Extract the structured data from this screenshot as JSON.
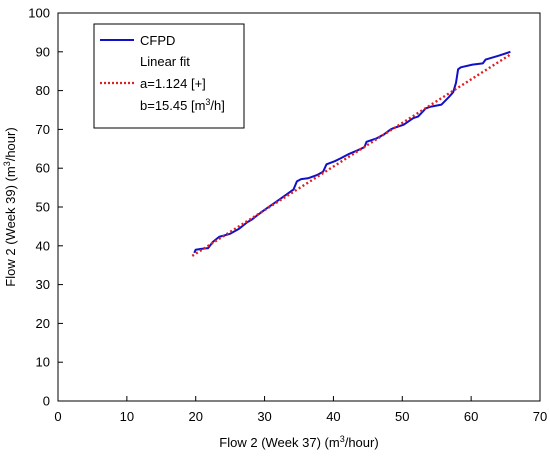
{
  "chart_data": {
    "type": "line",
    "xlabel": {
      "main": "Flow 2 (Week 37) (m",
      "sup": "3",
      "tail": "/hour)"
    },
    "ylabel": {
      "main": "Flow 2 (Week 39) (m",
      "sup": "3",
      "tail": "/hour)"
    },
    "xlim": [
      0,
      70
    ],
    "ylim": [
      0,
      100
    ],
    "xticks": [
      "0",
      "10",
      "20",
      "30",
      "40",
      "50",
      "60",
      "70"
    ],
    "yticks": [
      "0",
      "10",
      "20",
      "30",
      "40",
      "50",
      "60",
      "70",
      "80",
      "90",
      "100"
    ],
    "grid": false,
    "legend_position": "top-left",
    "legend": {
      "series_name": "CFPD",
      "fit_title": "Linear fit",
      "fit_a": "a=1.124 [+]",
      "fit_b_main": "b=15.45 [m",
      "fit_b_sup": "3",
      "fit_b_tail": "/h]"
    },
    "colors": {
      "series": "#1010c8",
      "fit": "#e02020"
    },
    "series": [
      {
        "name": "CFPD",
        "x": [
          19.8,
          20.0,
          20.8,
          21.8,
          22.5,
          23.4,
          25.0,
          26.3,
          27.5,
          28.1,
          28.9,
          30.1,
          31.5,
          33.0,
          34.2,
          34.7,
          35.3,
          36.3,
          37.7,
          38.5,
          39.0,
          40.2,
          41.0,
          42.3,
          43.4,
          44.5,
          44.8,
          46.3,
          47.4,
          48.3,
          48.7,
          50.2,
          51.6,
          52.3,
          53.4,
          54.0,
          55.7,
          56.8,
          57.4,
          57.8,
          58.1,
          58.5,
          60.2,
          61.7,
          62.1,
          64.0,
          65.7
        ],
        "y": [
          38.2,
          39.0,
          39.2,
          39.4,
          41.0,
          42.3,
          43.1,
          44.4,
          46.1,
          46.7,
          47.8,
          49.4,
          51.1,
          53.0,
          54.5,
          56.6,
          57.2,
          57.4,
          58.3,
          59.1,
          61.0,
          61.8,
          62.5,
          63.7,
          64.5,
          65.4,
          66.8,
          67.7,
          68.8,
          70.0,
          70.3,
          71.2,
          72.9,
          73.3,
          75.4,
          75.8,
          76.4,
          78.4,
          79.6,
          82.0,
          85.5,
          86.0,
          86.7,
          87.0,
          88.0,
          89.0,
          90.0
        ]
      },
      {
        "name": "Linear fit",
        "x": [
          19.5,
          65.7
        ],
        "y": [
          37.4,
          89.3
        ]
      }
    ]
  }
}
